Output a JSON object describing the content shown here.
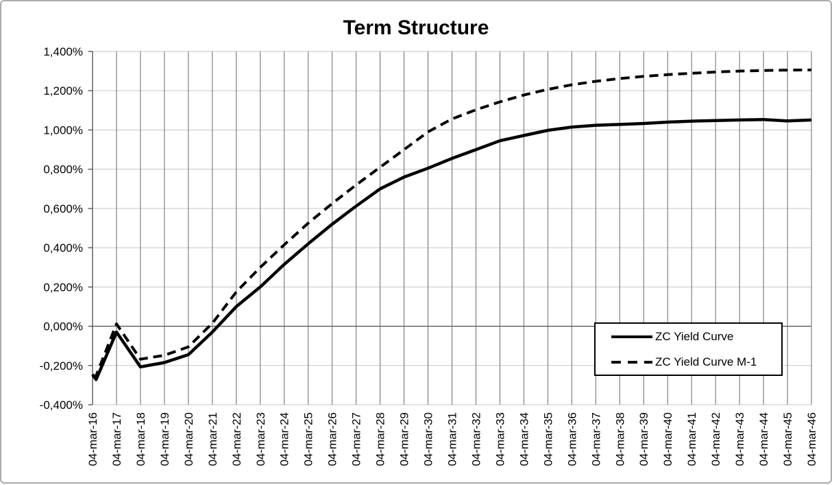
{
  "chart_data": {
    "type": "line",
    "title": "Term Structure",
    "xlabel": "",
    "ylabel": "",
    "grid": true,
    "legend_position": "inside-right",
    "ylim": [
      -0.4,
      1.4
    ],
    "x_years": [
      16,
      46
    ],
    "y_tick_labels": [
      "1,400%",
      "1,200%",
      "1,000%",
      "0,800%",
      "0,600%",
      "0,400%",
      "0,200%",
      "0,000%",
      "-0,200%",
      "-0,400%"
    ],
    "categories": [
      "04-mar-16",
      "04-mar-17",
      "04-mar-18",
      "04-mar-19",
      "04-mar-20",
      "04-mar-21",
      "04-mar-22",
      "04-mar-23",
      "04-mar-24",
      "04-mar-25",
      "04-mar-26",
      "04-mar-27",
      "04-mar-28",
      "04-mar-29",
      "04-mar-30",
      "04-mar-31",
      "04-mar-32",
      "04-mar-33",
      "04-mar-34",
      "04-mar-35",
      "04-mar-36",
      "04-mar-37",
      "04-mar-38",
      "04-mar-39",
      "04-mar-40",
      "04-mar-41",
      "04-mar-42",
      "04-mar-43",
      "04-mar-44",
      "04-mar-45",
      "04-mar-46"
    ],
    "series": [
      {
        "name": "ZC Yield Curve",
        "style": "solid",
        "unit": "%",
        "points": [
          [
            16,
            -0.245
          ],
          [
            16.15,
            -0.272
          ],
          [
            17,
            -0.03
          ],
          [
            18,
            -0.207
          ],
          [
            19,
            -0.185
          ],
          [
            20,
            -0.145
          ],
          [
            21,
            -0.03
          ],
          [
            22,
            0.1
          ],
          [
            23,
            0.2
          ],
          [
            24,
            0.315
          ],
          [
            25,
            0.42
          ],
          [
            26,
            0.52
          ],
          [
            27,
            0.612
          ],
          [
            28,
            0.7
          ],
          [
            29,
            0.76
          ],
          [
            30,
            0.805
          ],
          [
            31,
            0.855
          ],
          [
            32,
            0.9
          ],
          [
            33,
            0.945
          ],
          [
            34,
            0.972
          ],
          [
            35,
            0.998
          ],
          [
            36,
            1.015
          ],
          [
            37,
            1.024
          ],
          [
            38,
            1.028
          ],
          [
            39,
            1.033
          ],
          [
            40,
            1.04
          ],
          [
            41,
            1.045
          ],
          [
            42,
            1.048
          ],
          [
            43,
            1.051
          ],
          [
            44,
            1.053
          ],
          [
            45,
            1.046
          ],
          [
            46,
            1.051
          ]
        ]
      },
      {
        "name": "ZC Yield Curve M-1",
        "style": "dashed",
        "unit": "%",
        "points": [
          [
            16,
            -0.26
          ],
          [
            16.15,
            -0.252
          ],
          [
            17,
            0.012
          ],
          [
            18,
            -0.168
          ],
          [
            19,
            -0.148
          ],
          [
            20,
            -0.105
          ],
          [
            21,
            0.015
          ],
          [
            22,
            0.175
          ],
          [
            23,
            0.3
          ],
          [
            24,
            0.415
          ],
          [
            25,
            0.525
          ],
          [
            26,
            0.625
          ],
          [
            27,
            0.72
          ],
          [
            28,
            0.81
          ],
          [
            29,
            0.9
          ],
          [
            30,
            0.99
          ],
          [
            31,
            1.056
          ],
          [
            32,
            1.103
          ],
          [
            33,
            1.143
          ],
          [
            34,
            1.178
          ],
          [
            35,
            1.207
          ],
          [
            36,
            1.23
          ],
          [
            37,
            1.248
          ],
          [
            38,
            1.262
          ],
          [
            39,
            1.273
          ],
          [
            40,
            1.282
          ],
          [
            41,
            1.289
          ],
          [
            42,
            1.295
          ],
          [
            43,
            1.3
          ],
          [
            44,
            1.303
          ],
          [
            45,
            1.305
          ],
          [
            46,
            1.306
          ]
        ]
      }
    ],
    "colors": {
      "line": "#000000",
      "grid_vertical": "#6a6a6a",
      "grid_horizontal": "#c6c6c6",
      "axis": "#595959",
      "frame_border": "#ababab",
      "background": "#ffffff"
    }
  }
}
